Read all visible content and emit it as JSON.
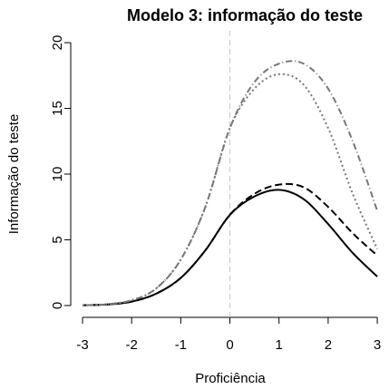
{
  "chart_data": {
    "type": "line",
    "title": "Modelo 3: informação do teste",
    "xlabel": "Proficiência",
    "ylabel": "Informação do teste",
    "x": [
      -3,
      -2.5,
      -2,
      -1.5,
      -1,
      -0.5,
      0,
      0.5,
      1,
      1.5,
      2,
      2.5,
      3
    ],
    "series": [
      {
        "color": "#000000",
        "dash": "solid",
        "values": [
          0.02,
          0.08,
          0.3,
          0.9,
          2.1,
          4.2,
          6.9,
          8.3,
          8.8,
          8.1,
          6.2,
          4.0,
          2.2
        ]
      },
      {
        "color": "#000000",
        "dash": "dashed",
        "values": [
          0.02,
          0.08,
          0.3,
          0.9,
          2.1,
          4.2,
          6.9,
          8.5,
          9.2,
          9.0,
          7.5,
          5.5,
          3.8
        ]
      },
      {
        "color": "#777777",
        "dash": "dotted",
        "values": [
          0.02,
          0.1,
          0.4,
          1.3,
          3.5,
          7.5,
          13.5,
          16.5,
          17.6,
          16.8,
          13.5,
          8.5,
          4.3
        ]
      },
      {
        "color": "#777777",
        "dash": "dashdot",
        "values": [
          0.02,
          0.1,
          0.4,
          1.3,
          3.5,
          7.5,
          13.5,
          17.0,
          18.4,
          18.4,
          16.5,
          12.5,
          7.2
        ]
      }
    ],
    "vline": 0,
    "xlim": [
      -3.24,
      3.22
    ],
    "ylim": [
      -0.9,
      20.9
    ],
    "xticks": [
      -3,
      -2,
      -1,
      0,
      1,
      2,
      3
    ],
    "yticks": [
      0,
      5,
      10,
      15,
      20
    ]
  }
}
